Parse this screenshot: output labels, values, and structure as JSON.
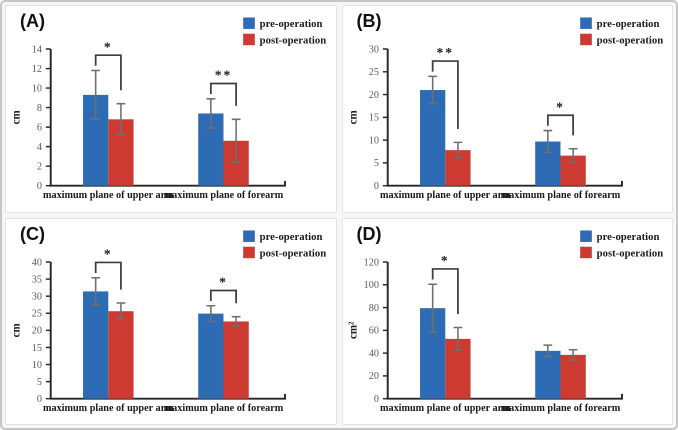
{
  "figure": {
    "legend": [
      "pre-operation",
      "post-operation"
    ],
    "colors": {
      "pre": "#2d6cb4",
      "post": "#cc3a32",
      "error_bar": "#6f6f6f",
      "axis": "#262626",
      "bracket": "#3d3d3d",
      "tick_text": "#595959",
      "label_text": "#1a1a1a"
    }
  },
  "chart_data": [
    {
      "type": "bar",
      "panel": "(A)",
      "ylabel": "cm",
      "ylim": [
        0,
        14
      ],
      "ystep": 2,
      "yticks": [
        0,
        2,
        4,
        6,
        8,
        10,
        12,
        14
      ],
      "grid": false,
      "legend_position": "top-right",
      "categories": [
        "maximum plane of upper arm",
        "maximum plane of forearm"
      ],
      "series": [
        {
          "name": "pre-operation",
          "values": [
            9.3,
            7.4
          ],
          "errors": [
            2.5,
            1.5
          ]
        },
        {
          "name": "post-operation",
          "values": [
            6.8,
            4.6
          ],
          "errors": [
            1.6,
            2.2
          ]
        }
      ],
      "significance": [
        {
          "group": 0,
          "label": "*"
        },
        {
          "group": 1,
          "label": "**"
        }
      ]
    },
    {
      "type": "bar",
      "panel": "(B)",
      "ylabel": "cm",
      "ylim": [
        0,
        30
      ],
      "ystep": 5,
      "yticks": [
        0,
        5,
        10,
        15,
        20,
        25,
        30
      ],
      "grid": false,
      "legend_position": "top-right",
      "categories": [
        "maximum plane of upper arm",
        "maximum plane of forearm"
      ],
      "series": [
        {
          "name": "pre-operation",
          "values": [
            21.0,
            9.7
          ],
          "errors": [
            3.0,
            2.4
          ]
        },
        {
          "name": "post-operation",
          "values": [
            7.8,
            6.6
          ],
          "errors": [
            1.7,
            1.5
          ]
        }
      ],
      "significance": [
        {
          "group": 0,
          "label": "**"
        },
        {
          "group": 1,
          "label": "*"
        }
      ]
    },
    {
      "type": "bar",
      "panel": "(C)",
      "ylabel": "cm",
      "ylim": [
        0,
        40
      ],
      "ystep": 5,
      "yticks": [
        0,
        5,
        10,
        15,
        20,
        25,
        30,
        35,
        40
      ],
      "grid": false,
      "legend_position": "top-right",
      "categories": [
        "maximum plane of upper arm",
        "maximum plane of forearm"
      ],
      "series": [
        {
          "name": "pre-operation",
          "values": [
            31.4,
            24.9
          ],
          "errors": [
            4.0,
            2.3
          ]
        },
        {
          "name": "post-operation",
          "values": [
            25.6,
            22.6
          ],
          "errors": [
            2.4,
            1.4
          ]
        }
      ],
      "significance": [
        {
          "group": 0,
          "label": "*"
        },
        {
          "group": 1,
          "label": "*"
        }
      ]
    },
    {
      "type": "bar",
      "panel": "(D)",
      "ylabel": "cm²",
      "ylim": [
        0,
        120
      ],
      "ystep": 20,
      "yticks": [
        0,
        20,
        40,
        60,
        80,
        100,
        120
      ],
      "grid": false,
      "legend_position": "top-right",
      "categories": [
        "maximum plane of upper arm",
        "maximum plane of forearm"
      ],
      "series": [
        {
          "name": "pre-operation",
          "values": [
            79.5,
            42.0
          ],
          "errors": [
            21.0,
            5.0
          ]
        },
        {
          "name": "post-operation",
          "values": [
            52.5,
            38.5
          ],
          "errors": [
            10.0,
            4.5
          ]
        }
      ],
      "significance": [
        {
          "group": 0,
          "label": "*"
        }
      ]
    }
  ]
}
